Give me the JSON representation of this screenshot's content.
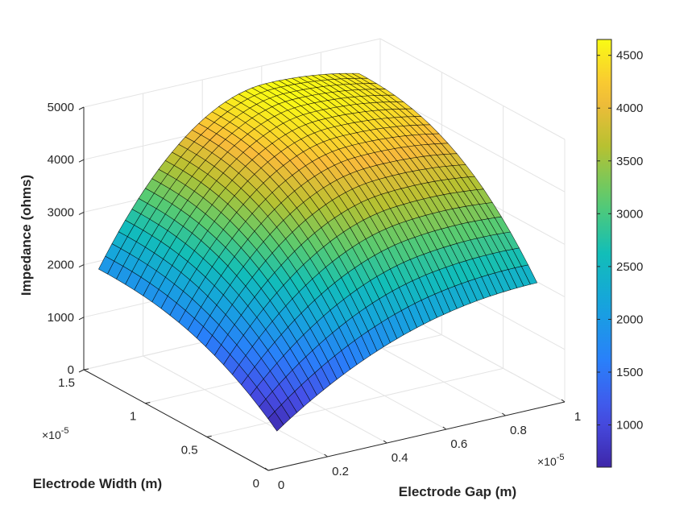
{
  "chart_data": {
    "type": "surface",
    "zlabel": "Impedance (ohms)",
    "xlabel": "Electrode Gap (m)",
    "ylabel": "Electrode Width (m)",
    "x_exponent": "×10-5",
    "y_exponent": "×10-5",
    "xlim": [
      0,
      1
    ],
    "ylim": [
      0,
      1.5
    ],
    "zlim": [
      0,
      5000
    ],
    "x_ticks": [
      0,
      0.2,
      0.4,
      0.6,
      0.8,
      1
    ],
    "x_tick_labels": [
      "0",
      "0.2",
      "0.4",
      "0.6",
      "0.8",
      "1"
    ],
    "y_ticks": [
      0,
      0.5,
      1,
      1.5
    ],
    "y_tick_labels": [
      "0",
      "0.5",
      "1",
      "1.5"
    ],
    "z_ticks": [
      0,
      1000,
      2000,
      3000,
      4000,
      5000
    ],
    "z_tick_labels": [
      "0",
      "1000",
      "2000",
      "3000",
      "4000",
      "5000"
    ],
    "grid": true,
    "colormap": "parula",
    "colorbar": {
      "range": [
        600,
        4650
      ],
      "ticks": [
        1000,
        1500,
        2000,
        2500,
        3000,
        3500,
        4000,
        4500
      ],
      "tick_labels": [
        "1000",
        "1500",
        "2000",
        "2500",
        "3000",
        "3500",
        "4000",
        "4500"
      ],
      "placement": "right"
    },
    "surface": {
      "x_range": [
        0.05,
        0.95
      ],
      "y_range": [
        0.05,
        1.5
      ],
      "corner_values": {
        "x_min_y_min": 620,
        "x_max_y_min": 2300,
        "x_min_y_max": 1850,
        "x_max_y_max": 4400
      },
      "peak_value": 4650,
      "peak_at": {
        "x": 0.62,
        "y": 1.5
      },
      "mesh_lines_x": 40,
      "mesh_lines_y": 20
    }
  }
}
